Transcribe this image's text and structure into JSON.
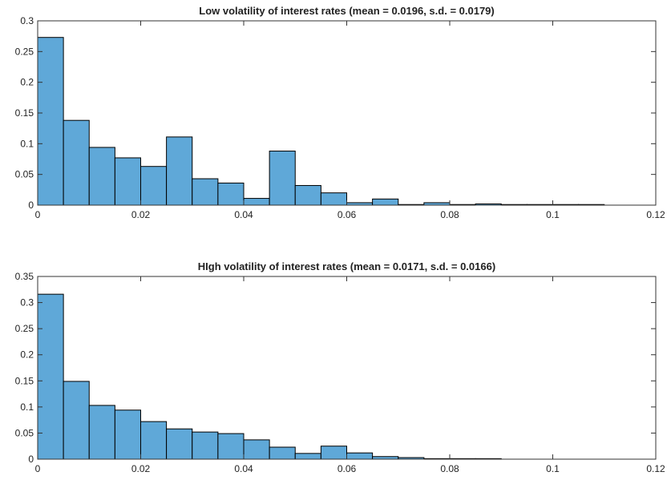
{
  "chart_data": [
    {
      "type": "histogram",
      "title": "Low volatility of interest rates (mean = 0.0196, s.d. = 0.0179)",
      "bins": [
        0,
        0.005,
        0.01,
        0.015,
        0.02,
        0.025,
        0.03,
        0.035,
        0.04,
        0.045,
        0.05,
        0.055,
        0.06,
        0.065,
        0.07,
        0.075,
        0.08,
        0.085,
        0.09,
        0.095,
        0.1,
        0.105,
        0.11
      ],
      "values": [
        0.273,
        0.138,
        0.094,
        0.077,
        0.063,
        0.111,
        0.043,
        0.036,
        0.011,
        0.088,
        0.032,
        0.02,
        0.004,
        0.01,
        0.001,
        0.004,
        0.001,
        0.002,
        0.001,
        0.001,
        0.001,
        0.001
      ],
      "color": "#5fa8d8",
      "xlim": [
        0,
        0.12
      ],
      "xticks": [
        0,
        0.02,
        0.04,
        0.06,
        0.08,
        0.1,
        0.12
      ],
      "ylim": [
        0,
        0.3
      ],
      "yticks": [
        0,
        0.05,
        0.1,
        0.15,
        0.2,
        0.25,
        0.3
      ]
    },
    {
      "type": "histogram",
      "title": "HIgh volatility of interest rates (mean = 0.0171, s.d. = 0.0166)",
      "bins": [
        0,
        0.005,
        0.01,
        0.015,
        0.02,
        0.025,
        0.03,
        0.035,
        0.04,
        0.045,
        0.05,
        0.055,
        0.06,
        0.065,
        0.07,
        0.075,
        0.08,
        0.085,
        0.09,
        0.095,
        0.1,
        0.105,
        0.11
      ],
      "values": [
        0.316,
        0.149,
        0.103,
        0.094,
        0.072,
        0.058,
        0.052,
        0.049,
        0.037,
        0.023,
        0.011,
        0.025,
        0.012,
        0.005,
        0.003,
        0.001,
        0.001,
        0.001,
        0,
        0,
        0,
        0
      ],
      "color": "#5fa8d8",
      "xlim": [
        0,
        0.12
      ],
      "xticks": [
        0,
        0.02,
        0.04,
        0.06,
        0.08,
        0.1,
        0.12
      ],
      "ylim": [
        0,
        0.35
      ],
      "yticks": [
        0,
        0.05,
        0.1,
        0.15,
        0.2,
        0.25,
        0.3,
        0.35
      ]
    }
  ]
}
